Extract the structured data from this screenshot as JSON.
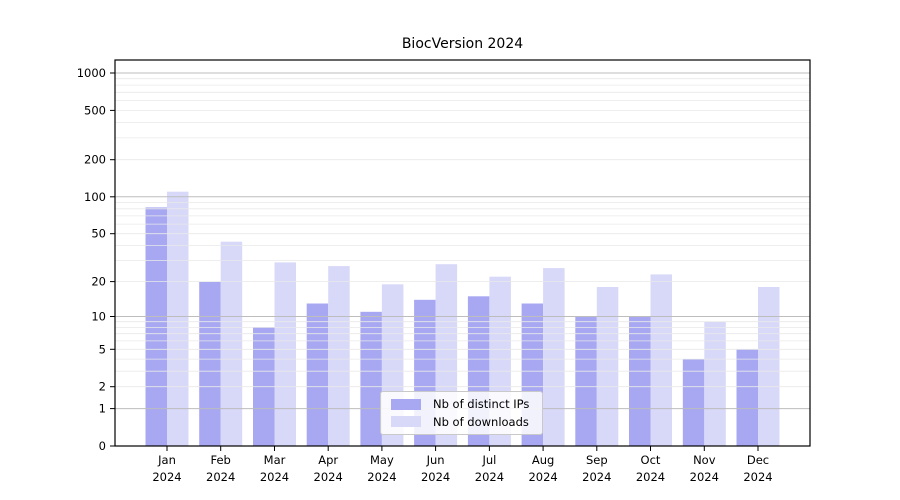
{
  "chart_data": {
    "type": "bar",
    "title": "BiocVersion 2024",
    "categories": [
      "Jan",
      "Feb",
      "Mar",
      "Apr",
      "May",
      "Jun",
      "Jul",
      "Aug",
      "Sep",
      "Oct",
      "Nov",
      "Dec"
    ],
    "year_label": "2024",
    "series": [
      {
        "name": "Nb of distinct IPs",
        "color": "#a8a8f2",
        "values": [
          82,
          20,
          8,
          13,
          11,
          14,
          15,
          13,
          10,
          10,
          4,
          5
        ]
      },
      {
        "name": "Nb of downloads",
        "color": "#d8d8f8",
        "values": [
          110,
          43,
          29,
          27,
          19,
          28,
          22,
          26,
          18,
          23,
          9,
          18
        ]
      }
    ],
    "yscale": "log1p",
    "ylim": [
      0,
      1273
    ],
    "y_ticks": [
      1000,
      500,
      200,
      100,
      50,
      20,
      10,
      5,
      2,
      1,
      0
    ],
    "grid": {
      "major": [
        1,
        10,
        100,
        1000
      ],
      "minor_per_decade": [
        2,
        3,
        4,
        5,
        6,
        7,
        8,
        9
      ],
      "major_color": "#bdbdbd",
      "minor_color": "#e9e9e9"
    },
    "legend": {
      "position": "lower-center"
    },
    "axis_color": "#000000",
    "background_color": "#ffffff"
  }
}
